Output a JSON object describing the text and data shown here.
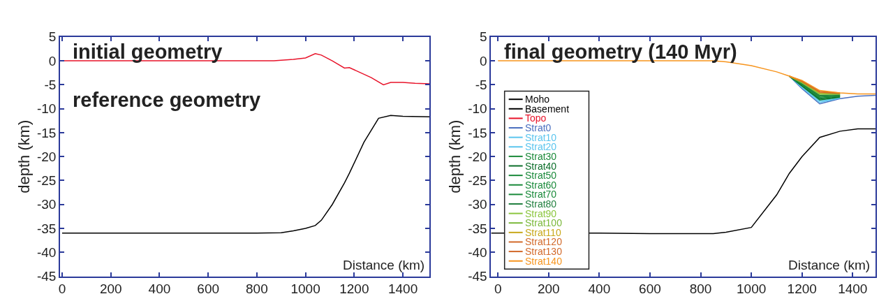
{
  "chart_data": [
    {
      "type": "line",
      "title": "initial geometry",
      "annotations": [
        "reference geometry"
      ],
      "xlabel": "Distance (km)",
      "ylabel": "depth (km)",
      "xlim": [
        -8,
        1510
      ],
      "ylim": [
        -45,
        5
      ],
      "xticks": [
        0,
        200,
        400,
        600,
        800,
        1000,
        1200,
        1400
      ],
      "yticks": [
        -45,
        -40,
        -35,
        -30,
        -25,
        -20,
        -15,
        -10,
        -5,
        0,
        5
      ],
      "legend": false,
      "marker": "none",
      "line_style": "solid",
      "series": [
        {
          "color": "#e8132a",
          "x": [
            0,
            870,
            950,
            1000,
            1040,
            1065,
            1110,
            1160,
            1180,
            1270,
            1320,
            1350,
            1400,
            1450,
            1510
          ],
          "values": [
            0,
            0,
            0.3,
            0.6,
            1.5,
            1.2,
            0,
            -1.5,
            -1.4,
            -3.5,
            -5,
            -4.5,
            -4.5,
            -4.7,
            -4.8
          ]
        },
        {
          "color": "#000000",
          "x": [
            0,
            800,
            900,
            950,
            1000,
            1040,
            1065,
            1110,
            1160,
            1180,
            1240,
            1300,
            1350,
            1400,
            1510
          ],
          "values": [
            -36,
            -36,
            -35.9,
            -35.5,
            -35,
            -34.4,
            -33.3,
            -30,
            -25.5,
            -23.5,
            -17,
            -12,
            -11.4,
            -11.6,
            -11.7
          ]
        }
      ]
    },
    {
      "type": "line",
      "title": "final geometry (140 Myr)",
      "xlabel": "Distance (km)",
      "ylabel": "depth (km)",
      "xlim": [
        -27,
        1490
      ],
      "ylim": [
        -45,
        5
      ],
      "xticks": [
        0,
        200,
        400,
        600,
        800,
        1000,
        1200,
        1400
      ],
      "yticks": [
        -45,
        -40,
        -35,
        -30,
        -25,
        -20,
        -15,
        -10,
        -5,
        0,
        5
      ],
      "legend": "bottom left",
      "marker": "none",
      "line_style": "solid",
      "x": [
        0,
        200,
        400,
        600,
        800,
        850,
        900,
        1000,
        1100,
        1150,
        1200,
        1270,
        1350,
        1420,
        1490
      ],
      "series": [
        {
          "name": "Moho",
          "color": "#000000",
          "x": [
            -27,
            400,
            600,
            800,
            850,
            900,
            1000,
            1100,
            1150,
            1200,
            1270,
            1350,
            1420,
            1490
          ],
          "values": [
            -36,
            -36,
            -36.1,
            -36.1,
            -36.1,
            -35.8,
            -34.8,
            -28,
            -23.5,
            -20,
            -16,
            -14.7,
            -14.2,
            -14.2
          ]
        },
        {
          "name": "Basement",
          "color": "#000000",
          "values": [
            null,
            null,
            null,
            null,
            null,
            null,
            null,
            null,
            null,
            null,
            null,
            null,
            null,
            null,
            null
          ]
        },
        {
          "name": "Topo",
          "color": "#e8132a",
          "values": [
            null,
            null,
            null,
            null,
            null,
            null,
            null,
            null,
            null,
            null,
            null,
            null,
            null,
            null,
            null
          ]
        },
        {
          "name": "Strat0",
          "color": "#4a6fbf",
          "values": [
            null,
            null,
            null,
            null,
            null,
            null,
            null,
            null,
            null,
            -3.2,
            -5.8,
            -9,
            -7.9,
            -7.4,
            -7.2
          ]
        },
        {
          "name": "Strat10",
          "color": "#5bc5ee",
          "values": [
            null,
            null,
            null,
            null,
            null,
            null,
            null,
            null,
            null,
            -3.2,
            -5.6,
            -8.7,
            -7.8,
            null,
            null
          ]
        },
        {
          "name": "Strat20",
          "color": "#5bc5ee",
          "values": [
            null,
            null,
            null,
            null,
            null,
            null,
            null,
            null,
            null,
            -3.2,
            -5.4,
            -8.4,
            -7.7,
            null,
            null
          ]
        },
        {
          "name": "Strat30",
          "color": "#1a8a3a",
          "values": [
            null,
            null,
            null,
            null,
            null,
            null,
            null,
            null,
            null,
            -3.2,
            -5.3,
            -8.2,
            -7.6,
            null,
            null
          ]
        },
        {
          "name": "Strat40",
          "color": "#0b6e2a",
          "values": [
            null,
            null,
            null,
            null,
            null,
            null,
            null,
            null,
            null,
            -3.2,
            -5.2,
            -8,
            -7.5,
            null,
            null
          ]
        },
        {
          "name": "Strat50",
          "color": "#1a8a3a",
          "values": [
            null,
            null,
            null,
            null,
            null,
            null,
            null,
            null,
            null,
            -3.2,
            -5,
            -7.8,
            -7.4,
            null,
            null
          ]
        },
        {
          "name": "Strat60",
          "color": "#1a8a3a",
          "values": [
            null,
            null,
            null,
            null,
            null,
            null,
            null,
            null,
            null,
            -3.2,
            -4.9,
            -7.6,
            -7.3,
            null,
            null
          ]
        },
        {
          "name": "Strat70",
          "color": "#1a8a3a",
          "values": [
            null,
            null,
            null,
            null,
            null,
            null,
            null,
            null,
            null,
            -3.2,
            -4.8,
            -7.4,
            -7.2,
            null,
            null
          ]
        },
        {
          "name": "Strat80",
          "color": "#238040",
          "values": [
            null,
            null,
            null,
            null,
            null,
            null,
            null,
            null,
            null,
            -3.2,
            -4.7,
            -7.2,
            -7.1,
            null,
            null
          ]
        },
        {
          "name": "Strat90",
          "color": "#8cc63f",
          "values": [
            null,
            null,
            null,
            null,
            null,
            null,
            null,
            null,
            null,
            -3.2,
            -4.6,
            -7,
            -7,
            null,
            null
          ]
        },
        {
          "name": "Strat100",
          "color": "#7ab83a",
          "values": [
            null,
            null,
            null,
            null,
            null,
            null,
            null,
            null,
            null,
            -3.2,
            -4.5,
            -6.8,
            -6.9,
            null,
            null
          ]
        },
        {
          "name": "Strat110",
          "color": "#c8a81a",
          "values": [
            null,
            null,
            null,
            null,
            null,
            null,
            null,
            null,
            null,
            -3.2,
            -4.4,
            -6.7,
            -6.8,
            null,
            null
          ]
        },
        {
          "name": "Strat120",
          "color": "#d2692a",
          "values": [
            null,
            null,
            null,
            null,
            null,
            null,
            null,
            null,
            null,
            -3.2,
            -4.3,
            -6.5,
            -6.8,
            null,
            null
          ]
        },
        {
          "name": "Strat130",
          "color": "#d2692a",
          "values": [
            null,
            null,
            null,
            null,
            null,
            null,
            null,
            null,
            null,
            -3.2,
            -4.2,
            -6.4,
            -6.7,
            null,
            null
          ]
        },
        {
          "name": "Strat140",
          "color": "#f7941d",
          "values": [
            0,
            0,
            0,
            0,
            0,
            0,
            -0.2,
            -1,
            -2.3,
            -3.2,
            -4.1,
            -6.2,
            -6.7,
            -6.9,
            -6.9
          ]
        }
      ]
    }
  ]
}
